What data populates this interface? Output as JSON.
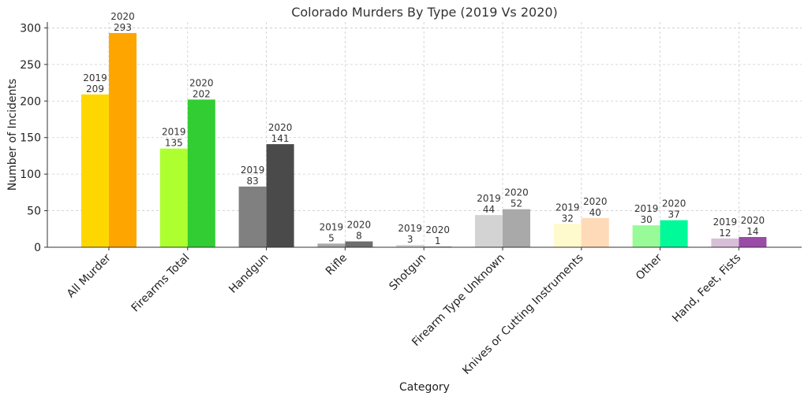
{
  "chart_data": {
    "type": "bar",
    "title": "Colorado Murders By Type (2019 Vs 2020)",
    "xlabel": "Category",
    "ylabel": "Number of Incidents",
    "ylim": [
      0,
      308
    ],
    "yticks": [
      0,
      50,
      100,
      150,
      200,
      250,
      300
    ],
    "grid": true,
    "categories": [
      "All Murder",
      "Firearms Total",
      "Handgun",
      "Rifle",
      "Shotgun",
      "Firearm Type Unknown",
      "Knives or Cutting Instruments",
      "Other",
      "Hand, Feet, Fists"
    ],
    "series": [
      {
        "name": "2019",
        "values": [
          209,
          135,
          83,
          5,
          3,
          44,
          32,
          30,
          12
        ],
        "colors": [
          "#FFD700",
          "#ADFF2F",
          "#808080",
          "#A9A9A9",
          "#D3D3D3",
          "#D3D3D3",
          "#FFFACD",
          "#98FB98",
          "#D8BFD8"
        ]
      },
      {
        "name": "2020",
        "values": [
          293,
          202,
          141,
          8,
          1,
          52,
          40,
          37,
          14
        ],
        "colors": [
          "#FFA500",
          "#32CD32",
          "#4A4A4A",
          "#6E6E6E",
          "#909090",
          "#A9A9A9",
          "#FFDAB9",
          "#00FA9A",
          "#9B4BA8"
        ]
      }
    ]
  }
}
